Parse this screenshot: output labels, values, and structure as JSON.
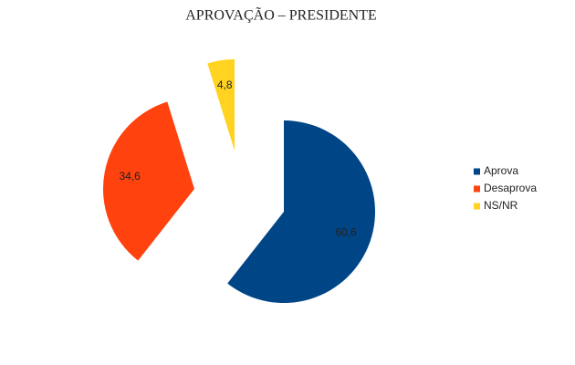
{
  "chart_data": {
    "type": "pie",
    "title": "APROVAÇÃO – PRESIDENTE",
    "categories": [
      "Aprova",
      "Desaprova",
      "NS/NR"
    ],
    "values": [
      60.6,
      34.6,
      4.8
    ],
    "value_labels": [
      "60,6",
      "34,6",
      "4,8"
    ],
    "colors": [
      "#004586",
      "#ff420e",
      "#ffd320"
    ],
    "legend": "right"
  }
}
